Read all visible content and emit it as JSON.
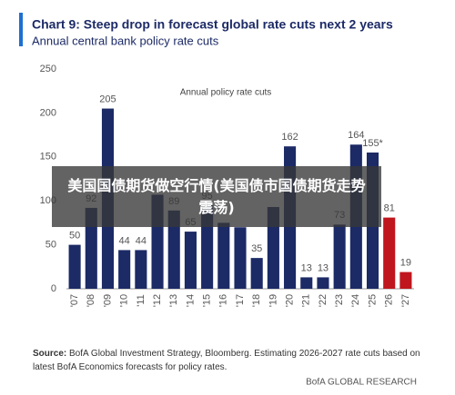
{
  "chart_data": {
    "type": "bar",
    "title": "Chart 9: Steep drop in forecast global rate cuts next 2 years",
    "subtitle": "Annual central bank policy rate cuts",
    "annotation": "Annual policy rate cuts",
    "categories": [
      "'07",
      "'08",
      "'09",
      "'10",
      "'11",
      "'12",
      "'13",
      "'14",
      "'15",
      "'16",
      "'17",
      "'18",
      "'19",
      "'20",
      "'21",
      "'22",
      "'23",
      "'24",
      "'25",
      "'26",
      "'27"
    ],
    "values": [
      50,
      92,
      205,
      44,
      44,
      107,
      89,
      65,
      95,
      75,
      70,
      35,
      93,
      162,
      13,
      13,
      73,
      164,
      155,
      81,
      19
    ],
    "value_labels": [
      "50",
      "92",
      "205",
      "44",
      "44",
      null,
      "89",
      "65",
      "95",
      null,
      null,
      "35",
      null,
      "162",
      "13",
      "13",
      "73",
      "164",
      "155*",
      "81",
      "19"
    ],
    "colors": [
      "#1c2a66",
      "#1c2a66",
      "#1c2a66",
      "#1c2a66",
      "#1c2a66",
      "#1c2a66",
      "#1c2a66",
      "#1c2a66",
      "#1c2a66",
      "#1c2a66",
      "#1c2a66",
      "#1c2a66",
      "#1c2a66",
      "#1c2a66",
      "#1c2a66",
      "#1c2a66",
      "#1c2a66",
      "#1c2a66",
      "#1c2a66",
      "#c0161d",
      "#c0161d"
    ],
    "ylim": [
      0,
      250
    ],
    "yticks": [
      0,
      50,
      100,
      150,
      200,
      250
    ],
    "grid": false,
    "source_label": "Source:",
    "source": "BofA Global Investment Strategy, Bloomberg. Estimating 2026-2027 rate cuts based on latest BofA Economics forecasts for policy rates.",
    "brand": "BofA GLOBAL RESEARCH",
    "overlay_text": "美国国债期货做空行情(美国债市国债期货走势震荡)"
  }
}
